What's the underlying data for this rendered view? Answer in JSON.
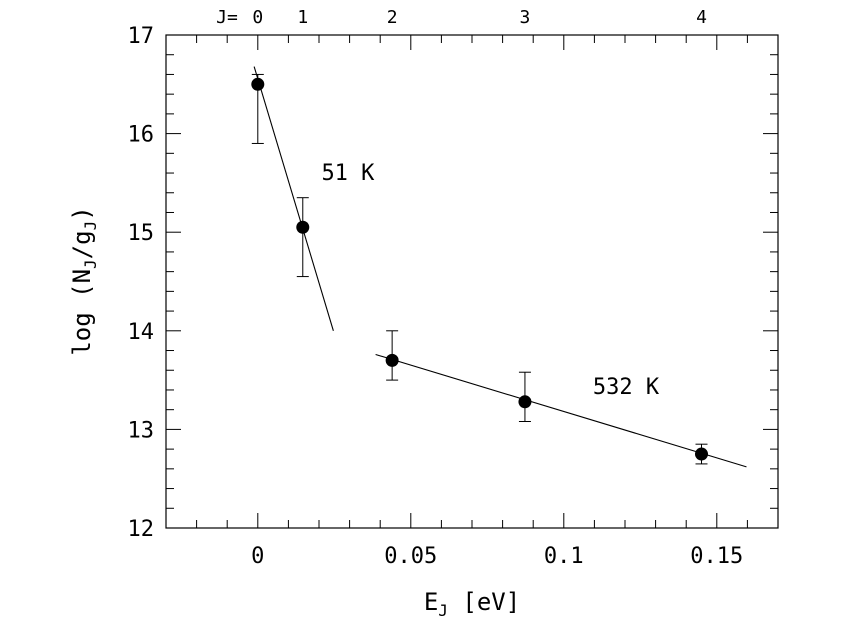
{
  "chart_data": {
    "type": "scatter",
    "xlabel": {
      "main": "E",
      "sub": "J",
      "rest": " [eV]"
    },
    "ylabel": {
      "main": "log (N",
      "sub1": "J",
      "mid": "/g",
      "sub2": "J",
      "end": ")"
    },
    "xlim": [
      -0.03,
      0.17
    ],
    "ylim": [
      12,
      17
    ],
    "xticks": [
      0,
      0.05,
      0.1,
      0.15
    ],
    "xtick_labels": [
      "0",
      "0.05",
      "0.1",
      "0.15"
    ],
    "yticks": [
      12,
      13,
      14,
      15,
      16,
      17
    ],
    "ytick_labels": [
      "12",
      "13",
      "14",
      "15",
      "16",
      "17"
    ],
    "top_axis": {
      "prefix": "J=",
      "levels": [
        {
          "label": "0",
          "x": 0
        },
        {
          "label": "1",
          "x": 0.0147
        },
        {
          "label": "2",
          "x": 0.0439
        },
        {
          "label": "3",
          "x": 0.0873
        },
        {
          "label": "4",
          "x": 0.145
        }
      ]
    },
    "series": [
      {
        "points": [
          {
            "x": 0,
            "y": 16.5,
            "ylo": 15.9,
            "yhi": 16.6
          },
          {
            "x": 0.0147,
            "y": 15.05,
            "ylo": 14.55,
            "yhi": 15.35
          },
          {
            "x": 0.0439,
            "y": 13.7,
            "ylo": 13.5,
            "yhi": 14.0
          },
          {
            "x": 0.0873,
            "y": 13.28,
            "ylo": 13.08,
            "yhi": 13.58
          },
          {
            "x": 0.145,
            "y": 12.75,
            "ylo": 12.65,
            "yhi": 12.85
          }
        ]
      }
    ],
    "fits": [
      {
        "label": "51 K",
        "x": [
          -0.0012,
          0.0247
        ],
        "y": [
          16.68,
          14.0
        ],
        "label_at": [
          0.0208,
          15.53
        ]
      },
      {
        "label": "532 K",
        "x": [
          0.0385,
          0.1597
        ],
        "y": [
          13.76,
          12.62
        ],
        "label_at": [
          0.1095,
          13.36
        ]
      }
    ],
    "grid": false
  }
}
